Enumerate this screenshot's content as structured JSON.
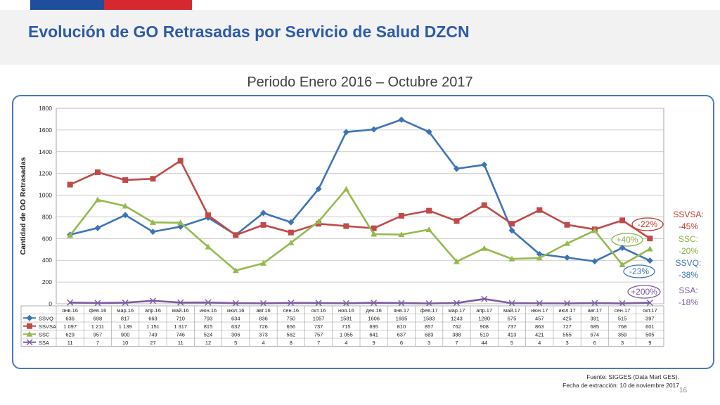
{
  "slide": {
    "title": "Evolución de GO Retrasadas por Servicio de Salud DZCN",
    "subtitle": "Periodo Enero 2016 – Octubre 2017",
    "source_line1": "Fuente: SIGGES (Data Mart GES).",
    "source_line2": "Fecha de extracción: 10 de noviembre 2017",
    "page_number": "16"
  },
  "colors": {
    "brand_blue": "#1f4e9c",
    "brand_red": "#d7282f",
    "title": "#2e5ba8",
    "frame": "#4a78c2"
  },
  "chart_data": {
    "type": "line",
    "ylabel": "Cantidad de GO Retrasadas",
    "ylim": [
      0,
      1800
    ],
    "yticks": [
      0,
      200,
      400,
      600,
      800,
      1000,
      1200,
      1400,
      1600,
      1800
    ],
    "grid": true,
    "categories": [
      "янв.16",
      "фев.16",
      "мар.16",
      "апр.16",
      "май.16",
      "июн.16",
      "июл.16",
      "авг.16",
      "сен.16",
      "окт.16",
      "ноя.16",
      "дек.16",
      "янв.17",
      "фев.17",
      "мар.17",
      "апр.17",
      "май.17",
      "июн.17",
      "июл.17",
      "авг.17",
      "сен.17",
      "окт.17"
    ],
    "series": [
      {
        "name": "SSVQ",
        "color": "#3d74b5",
        "marker": "diamond",
        "values": [
          636,
          698,
          817,
          663,
          710,
          793,
          634,
          836,
          750,
          1057,
          1581,
          1606,
          1695,
          1583,
          1243,
          1280,
          675,
          457,
          425,
          391,
          515,
          397
        ],
        "labels": [
          "636",
          "698",
          "817",
          "663",
          "710",
          "793",
          "634",
          "836",
          "750",
          "1057",
          "1581",
          "1606",
          "1695",
          "1583",
          "1243",
          "1280",
          "675",
          "457",
          "425",
          "391",
          "515",
          "397"
        ]
      },
      {
        "name": "SSVSA",
        "color": "#bf4a48",
        "marker": "square",
        "values": [
          1097,
          1211,
          1139,
          1151,
          1317,
          815,
          632,
          726,
          656,
          737,
          715,
          695,
          810,
          857,
          762,
          908,
          737,
          863,
          727,
          685,
          768,
          601
        ],
        "labels": [
          "1 097",
          "1 211",
          "1 139",
          "1 151",
          "1 317",
          "815",
          "632",
          "726",
          "656",
          "737",
          "715",
          "695",
          "810",
          "857",
          "762",
          "908",
          "737",
          "863",
          "727",
          "685",
          "768",
          "601"
        ]
      },
      {
        "name": "SSC",
        "color": "#95b94e",
        "marker": "triangle",
        "values": [
          629,
          957,
          900,
          749,
          746,
          524,
          306,
          373,
          562,
          757,
          1055,
          641,
          637,
          683,
          388,
          510,
          413,
          421,
          555,
          674,
          359,
          505
        ],
        "labels": [
          "629",
          "957",
          "900",
          "749",
          "746",
          "524",
          "306",
          "373",
          "562",
          "757",
          "1 055",
          "641",
          "637",
          "683",
          "388",
          "510",
          "413",
          "421",
          "555",
          "674",
          "359",
          "505"
        ]
      },
      {
        "name": "SSA",
        "color": "#7d5ba3",
        "marker": "x",
        "values": [
          11,
          7,
          10,
          27,
          11,
          12,
          5,
          4,
          8,
          7,
          4,
          9,
          6,
          3,
          7,
          44,
          5,
          4,
          3,
          6,
          3,
          9
        ],
        "labels": [
          "11",
          "7",
          "10",
          "27",
          "11",
          "12",
          "5",
          "4",
          "8",
          "7",
          "4",
          "9",
          "6",
          "3",
          "7",
          "44",
          "5",
          "4",
          "3",
          "6",
          "3",
          "9"
        ]
      }
    ],
    "annotations": [
      {
        "text": "-22%",
        "series": "SSVSA",
        "shape": "ellipse",
        "color": "#c0392b"
      },
      {
        "text": "+40%",
        "series": "SSC",
        "shape": "ellipse",
        "color": "#8aae45"
      },
      {
        "text": "-23%",
        "series": "SSVQ",
        "shape": "ellipse",
        "color": "#3d74b5"
      },
      {
        "text": "+200%",
        "series": "SSA",
        "shape": "ellipse",
        "color": "#7d5ba3"
      }
    ],
    "side_labels": [
      {
        "line1": "SSVSA:",
        "line2": "-45%",
        "color": "#c0392b"
      },
      {
        "line1": "SSC:",
        "line2": "-20%",
        "color": "#8aae45"
      },
      {
        "line1": "SSVQ:",
        "line2": "-38%",
        "color": "#3d74b5"
      },
      {
        "line1": "SSA:",
        "line2": "-18%",
        "color": "#7d5ba3"
      }
    ]
  }
}
